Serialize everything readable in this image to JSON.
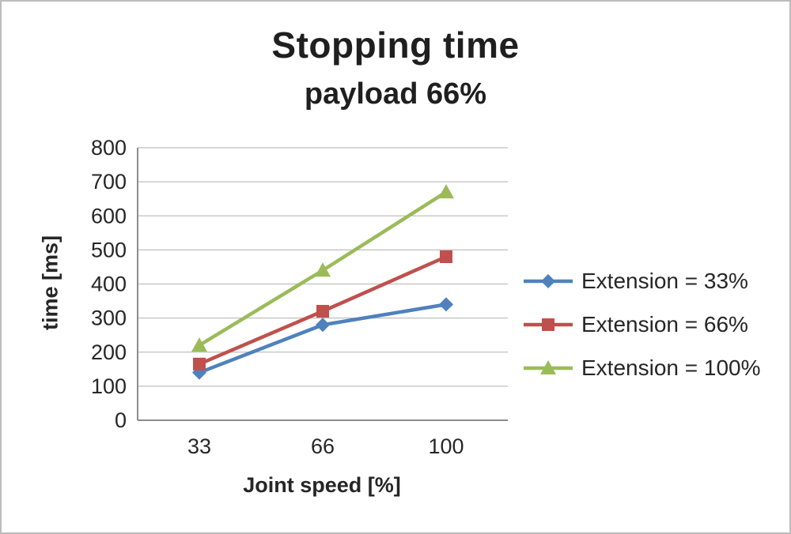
{
  "chart_data": {
    "type": "line",
    "title": "Stopping time",
    "subtitle": "payload 66%",
    "xlabel": "Joint speed [%]",
    "ylabel": "time [ms]",
    "categories": [
      "33",
      "66",
      "100"
    ],
    "ylim": [
      0,
      800
    ],
    "ytick_step": 100,
    "grid": true,
    "legend_position": "right",
    "series": [
      {
        "name": "Extension = 33%",
        "color": "#4F81BD",
        "marker": "diamond",
        "values": [
          140,
          280,
          340
        ]
      },
      {
        "name": "Extension = 66%",
        "color": "#C0504D",
        "marker": "square",
        "values": [
          165,
          320,
          480
        ]
      },
      {
        "name": "Extension = 100%",
        "color": "#9BBB59",
        "marker": "triangle",
        "values": [
          220,
          440,
          670
        ]
      }
    ],
    "colors": {
      "gridline": "#bfbfbf",
      "axis_line": "#8c8c8c",
      "text": "#262626"
    }
  }
}
